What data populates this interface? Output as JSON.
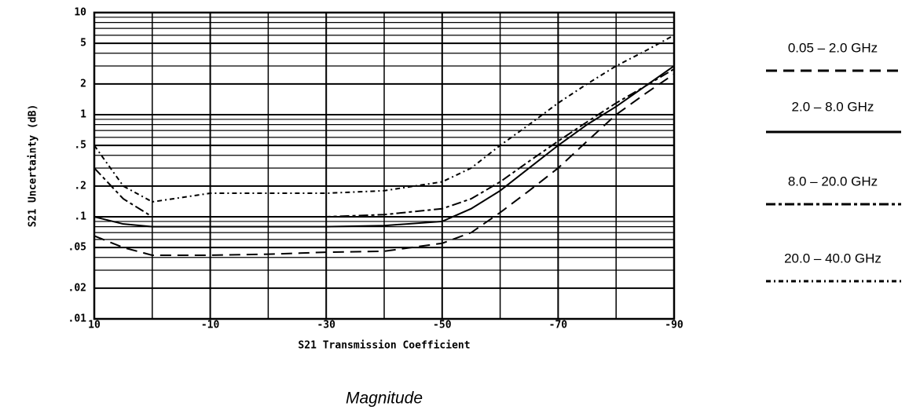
{
  "chart_data": {
    "type": "line",
    "xlabel": "S21 Transmission Coefficient",
    "ylabel": "S21 Uncertainty (dB)",
    "annotation": "Magnitude",
    "x": [
      10,
      5,
      0,
      -10,
      -20,
      -30,
      -40,
      -50,
      -55,
      -60,
      -65,
      -70,
      -75,
      -80,
      -85,
      -90
    ],
    "series": [
      {
        "name": "0.05 – 2.0 GHz",
        "color": "#000000",
        "dash": "14 8",
        "values": [
          0.065,
          0.05,
          0.042,
          0.042,
          0.043,
          0.045,
          0.046,
          0.055,
          0.07,
          0.11,
          0.18,
          0.3,
          0.55,
          1.0,
          1.6,
          2.5
        ]
      },
      {
        "name": "2.0 – 8.0 GHz",
        "color": "#000000",
        "dash": "none",
        "values": [
          0.1,
          0.085,
          0.08,
          0.08,
          0.08,
          0.08,
          0.082,
          0.09,
          0.12,
          0.18,
          0.3,
          0.5,
          0.8,
          1.2,
          1.9,
          3.0
        ]
      },
      {
        "name": "8.0 – 20.0 GHz",
        "color": "#000000",
        "dash": "12 4 4 4",
        "values": [
          0.3,
          0.15,
          0.1,
          0.1,
          0.1,
          0.1,
          0.105,
          0.12,
          0.15,
          0.22,
          0.35,
          0.55,
          0.85,
          1.3,
          1.9,
          2.8
        ]
      },
      {
        "name": "20.0 – 40.0 GHz",
        "color": "#000000",
        "dash": "6 4 2 4",
        "values": [
          0.5,
          0.2,
          0.14,
          0.17,
          0.17,
          0.17,
          0.18,
          0.22,
          0.3,
          0.5,
          0.8,
          1.3,
          2.0,
          3.0,
          4.2,
          6.0
        ]
      }
    ],
    "xlim": [
      10,
      -90
    ],
    "xticks": [
      10,
      -10,
      -30,
      -50,
      -70,
      -90
    ],
    "ylim": [
      0.01,
      10
    ],
    "yscale": "log",
    "yticks": [
      10,
      5,
      2,
      1,
      {
        "value": 0.5,
        "label": ".5"
      },
      {
        "value": 0.2,
        "label": ".2"
      },
      {
        "value": 0.1,
        "label": ".1"
      },
      {
        "value": 0.05,
        "label": ".05"
      },
      {
        "value": 0.02,
        "label": ".02"
      },
      {
        "value": 0.01,
        "label": ".01"
      }
    ],
    "grid": true,
    "legend": "right"
  }
}
